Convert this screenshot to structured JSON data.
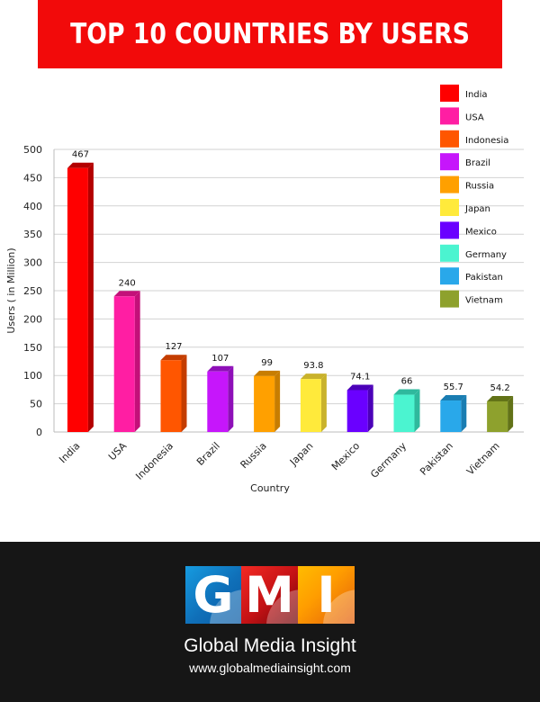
{
  "header": {
    "title": "TOP 10 COUNTRIES BY USERS"
  },
  "chart_data": {
    "type": "bar",
    "title": "TOP 10 COUNTRIES BY USERS",
    "xlabel": "Country",
    "ylabel": "Users ( in Million)",
    "categories": [
      "India",
      "USA",
      "Indonesia",
      "Brazil",
      "Russia",
      "Japan",
      "Mexico",
      "Germany",
      "Pakistan",
      "Vietnam"
    ],
    "values": [
      467,
      240,
      127,
      107,
      99,
      93.8,
      74.1,
      66,
      55.7,
      54.2
    ],
    "value_labels": [
      "467",
      "240",
      "127",
      "107",
      "99",
      "93.8",
      "74.1",
      "66",
      "55.7",
      "54.2"
    ],
    "y_ticks": [
      0,
      50,
      100,
      150,
      200,
      250,
      300,
      350,
      400,
      450,
      500
    ],
    "ylim": [
      0,
      500
    ],
    "grid": true,
    "legend_position": "top-right",
    "colors": [
      "#ff0000",
      "#ff1ea3",
      "#ff5600",
      "#c616fb",
      "#ffa000",
      "#ffea3b",
      "#6a00ff",
      "#4bf4d0",
      "#29a8ea",
      "#8ea12d"
    ],
    "side_colors": [
      "#b30000",
      "#c31079",
      "#c43d00",
      "#8e0fb8",
      "#c77d00",
      "#c9b22b",
      "#4b00b8",
      "#2fb99d",
      "#1a7db2",
      "#627217"
    ]
  },
  "footer": {
    "logo_letters": [
      "G",
      "M",
      "I"
    ],
    "brand_name": "Global Media Insight",
    "url": "www.globalmediainsight.com"
  }
}
